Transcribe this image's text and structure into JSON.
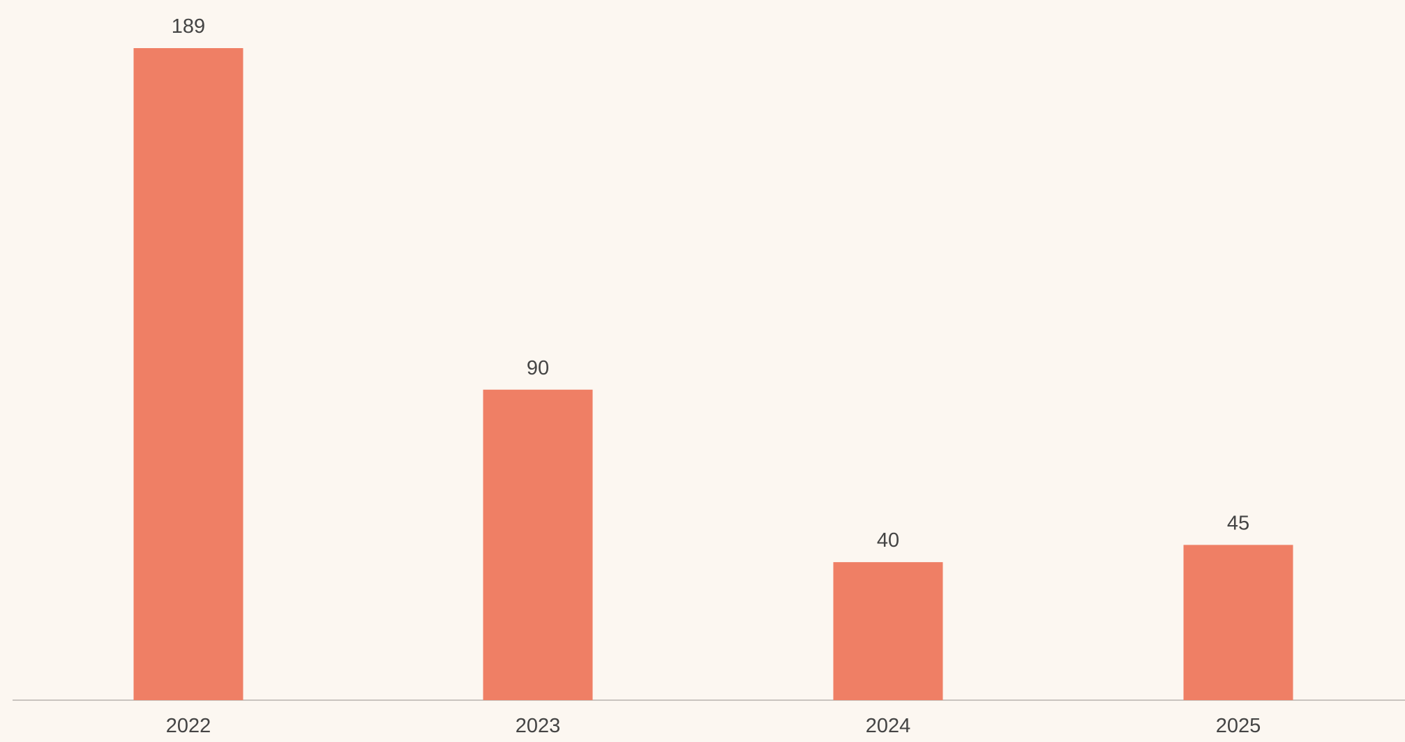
{
  "colors": {
    "background": "#fcf7f1",
    "bar": "#ef7f65",
    "axis": "#c9c4bf",
    "text": "#444444"
  },
  "chart_data": {
    "type": "bar",
    "categories": [
      "2022",
      "2023",
      "2024",
      "2025"
    ],
    "values": [
      189,
      90,
      40,
      45
    ],
    "data_labels": [
      "189",
      "90",
      "40",
      "45"
    ],
    "title": "",
    "xlabel": "",
    "ylabel": "",
    "ylim": [
      0,
      189
    ],
    "grid": false,
    "legend": "none"
  }
}
